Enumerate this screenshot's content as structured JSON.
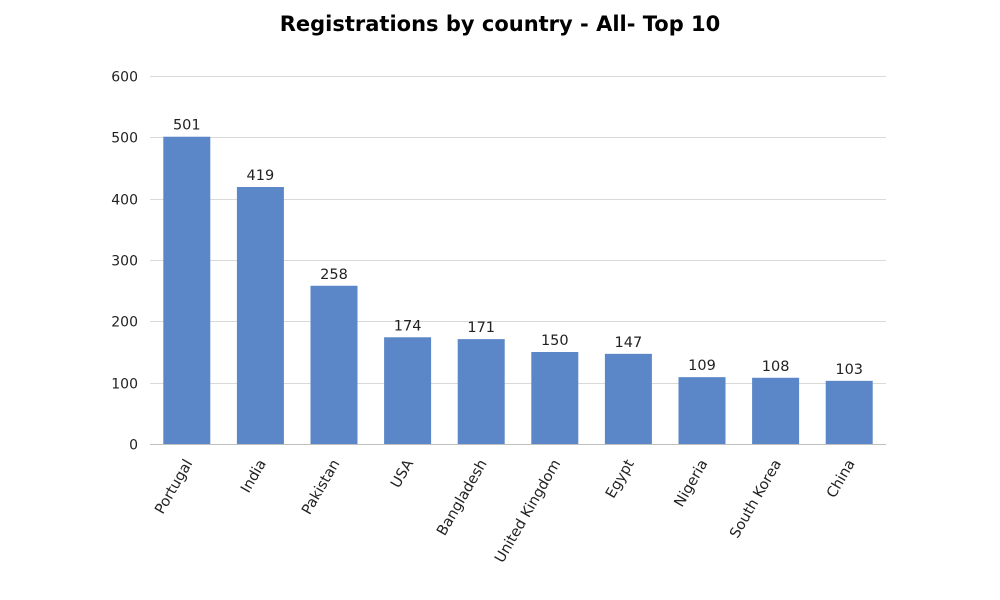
{
  "chart_data": {
    "type": "bar",
    "title": "Registrations by country - All- Top 10",
    "categories": [
      "Portugal",
      "India",
      "Pakistan",
      "USA",
      "Bangladesh",
      "United Kingdom",
      "Egypt",
      "Nigeria",
      "South Korea",
      "China"
    ],
    "values": [
      501,
      419,
      258,
      174,
      171,
      150,
      147,
      109,
      108,
      103
    ],
    "xlabel": "",
    "ylabel": "",
    "ylim": [
      0,
      600
    ],
    "yticks": [
      0,
      100,
      200,
      300,
      400,
      500,
      600
    ],
    "grid": true,
    "legend": "none",
    "bar_color": "#5b87c8",
    "gridline_color": "#d9d9d9"
  }
}
